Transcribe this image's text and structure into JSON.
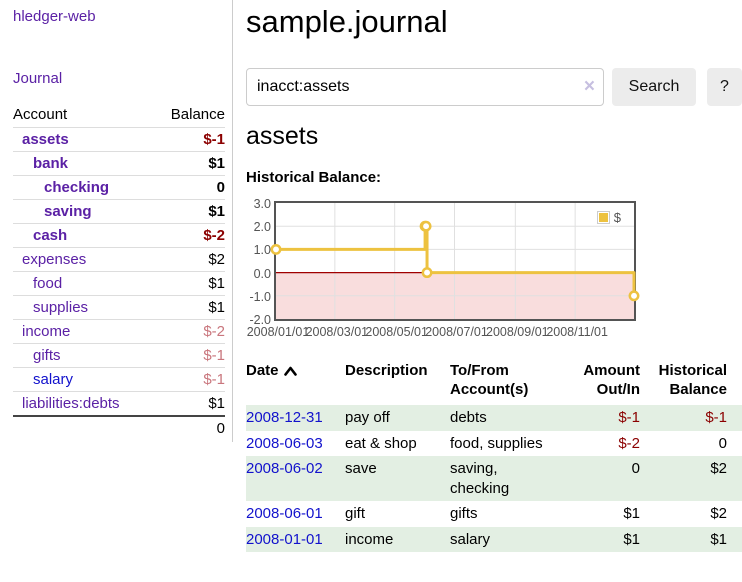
{
  "palette": {
    "link-purple": "#5b21a5",
    "link-blue": "#1212cc",
    "neg-strong": "#8b0000",
    "neg-soft": "#c9767d",
    "row-green": "#e3efe3",
    "chart-line": "#edc240",
    "chart-pink": "#f9dddd",
    "chart-zero": "#a00000",
    "chart-border": "#545454",
    "chart-grid": "#e0e0e0",
    "axis-text": "#545454",
    "btn-bg": "#ececec",
    "input-border": "#cccccc",
    "divider": "#cccccc",
    "row-border": "#dddddd",
    "total-border": "#444444",
    "clear-x": "#c6bfe0"
  },
  "sidebar": {
    "app_title": "hledger-web",
    "nav": {
      "journal": "Journal"
    },
    "accounts": {
      "header": {
        "account": "Account",
        "balance": "Balance"
      },
      "rows": [
        {
          "name": "assets",
          "balance": "$-1",
          "row_classes": "lvl1 emph",
          "bal_classes": "neg"
        },
        {
          "name": "bank",
          "balance": "$1",
          "row_classes": "lvl2 emph",
          "bal_classes": ""
        },
        {
          "name": "checking",
          "balance": "0",
          "row_classes": "lvl3 emph",
          "bal_classes": ""
        },
        {
          "name": "saving",
          "balance": "$1",
          "row_classes": "lvl3 emph",
          "bal_classes": ""
        },
        {
          "name": "cash",
          "balance": "$-2",
          "row_classes": "lvl2 emph",
          "bal_classes": "neg"
        },
        {
          "name": "expenses",
          "balance": "$2",
          "row_classes": "lvl1",
          "bal_classes": ""
        },
        {
          "name": "food",
          "balance": "$1",
          "row_classes": "lvl2",
          "bal_classes": ""
        },
        {
          "name": "supplies",
          "balance": "$1",
          "row_classes": "lvl2",
          "bal_classes": ""
        },
        {
          "name": "income",
          "balance": "$-2",
          "row_classes": "lvl1",
          "bal_classes": "neg-soft"
        },
        {
          "name": "gifts",
          "balance": "$-1",
          "row_classes": "lvl2",
          "bal_classes": "neg-soft"
        },
        {
          "name": "salary",
          "balance": "$-1",
          "row_classes": "lvl2",
          "name_classes": "blue",
          "bal_classes": "neg-soft"
        },
        {
          "name": "liabilities:debts",
          "balance": "$1",
          "row_classes": "lvl1",
          "bal_classes": ""
        }
      ],
      "total": "0"
    }
  },
  "main": {
    "title": "sample.journal",
    "search": {
      "value": "inacct:assets",
      "clear_icon": "×",
      "button": "Search",
      "help": "?"
    },
    "account_heading": "assets",
    "chart_label": "Historical Balance:"
  },
  "chart_data": {
    "type": "line",
    "title": "Historical Balance",
    "series": [
      {
        "name": "$",
        "color": "#edc240",
        "steps": true,
        "points": [
          [
            "2008-01-01",
            1
          ],
          [
            "2008-06-01",
            2
          ],
          [
            "2008-06-02",
            2
          ],
          [
            "2008-06-03",
            0
          ],
          [
            "2008-12-31",
            -1
          ]
        ]
      }
    ],
    "xrange": [
      "2008-01-01",
      "2008-12-31"
    ],
    "ylim": [
      -2,
      3
    ],
    "yticks": [
      "3.0",
      "2.0",
      "1.0",
      "0.0",
      "-1.0",
      "-2.0"
    ],
    "xticks": [
      "2008/01/01",
      "2008/03/01",
      "2008/05/01",
      "2008/07/01",
      "2008/09/01",
      "2008/11/01"
    ],
    "grid": true,
    "legend_position": "top-right",
    "negative_region_color": "#f9dddd",
    "zero_line_color": "#a00000"
  },
  "register": {
    "sort_icon": "chevron-up",
    "headers": {
      "date": "Date",
      "description": "Description",
      "accounts": "To/From\nAccount(s)",
      "amount": "Amount\nOut/In",
      "balance": "Historical\nBalance"
    },
    "rows": [
      {
        "date": "2008-12-31",
        "description": "pay off",
        "accounts": "debts",
        "amount": "$-1",
        "balance": "$-1",
        "row_classes": "shaded",
        "amount_classes": "neg",
        "balance_classes": "neg"
      },
      {
        "date": "2008-06-03",
        "description": "eat & shop",
        "accounts": "food, supplies",
        "amount": "$-2",
        "balance": "0",
        "row_classes": "",
        "amount_classes": "neg",
        "balance_classes": ""
      },
      {
        "date": "2008-06-02",
        "description": "save",
        "accounts": "saving,\nchecking",
        "amount": "0",
        "balance": "$2",
        "row_classes": "shaded",
        "amount_classes": "",
        "balance_classes": ""
      },
      {
        "date": "2008-06-01",
        "description": "gift",
        "accounts": "gifts",
        "amount": "$1",
        "balance": "$2",
        "row_classes": "",
        "amount_classes": "",
        "balance_classes": ""
      },
      {
        "date": "2008-01-01",
        "description": "income",
        "accounts": "salary",
        "amount": "$1",
        "balance": "$1",
        "row_classes": "shaded",
        "amount_classes": "",
        "balance_classes": ""
      }
    ]
  }
}
